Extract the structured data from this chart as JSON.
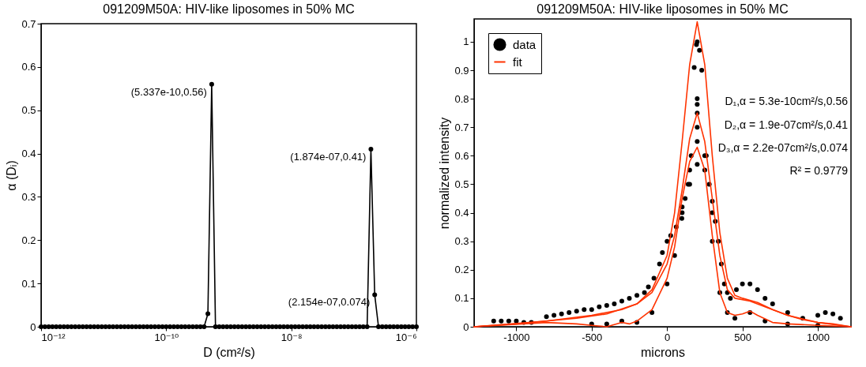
{
  "chart_data": [
    {
      "type": "line",
      "title": "091209M50A: HIV-like liposomes in 50% MC",
      "xlabel": "D (cm²/s)",
      "ylabel": "α (Dᵢ)",
      "log": "x",
      "marker": "circle",
      "line_style": "solid",
      "xlim": [
        1e-12,
        1e-06
      ],
      "xticks": [
        {
          "value": 1e-12,
          "label": "10⁻¹²"
        },
        {
          "value": 1e-10,
          "label": "10⁻¹⁰"
        },
        {
          "value": 1e-08,
          "label": "10⁻⁸"
        },
        {
          "value": 1e-06,
          "label": "10⁻⁶"
        }
      ],
      "ylim": [
        0,
        0.7
      ],
      "yticks": [
        0,
        0.1,
        0.2,
        0.3,
        0.4,
        0.5,
        0.6,
        0.7
      ],
      "x": [
        1e-12,
        1.15e-12,
        1.322e-12,
        1.52e-12,
        1.748e-12,
        2.009e-12,
        2.31e-12,
        2.656e-12,
        3.054e-12,
        3.511e-12,
        4.037e-12,
        4.642e-12,
        5.337e-12,
        6.136e-12,
        7.055e-12,
        8.111e-12,
        9.326e-12,
        1.072e-11,
        1.233e-11,
        1.417e-11,
        1.63e-11,
        1.874e-11,
        2.154e-11,
        2.477e-11,
        2.848e-11,
        3.275e-11,
        3.765e-11,
        4.329e-11,
        4.977e-11,
        5.722e-11,
        6.579e-11,
        7.565e-11,
        8.697e-11,
        1e-10,
        1.15e-10,
        1.322e-10,
        1.52e-10,
        1.748e-10,
        2.009e-10,
        2.31e-10,
        2.656e-10,
        3.054e-10,
        3.511e-10,
        4.037e-10,
        4.642e-10,
        5.337e-10,
        6.136e-10,
        7.055e-10,
        8.111e-10,
        9.326e-10,
        1.072e-09,
        1.233e-09,
        1.417e-09,
        1.63e-09,
        1.874e-09,
        2.154e-09,
        2.477e-09,
        2.848e-09,
        3.275e-09,
        3.765e-09,
        4.329e-09,
        4.977e-09,
        5.722e-09,
        6.579e-09,
        7.565e-09,
        8.697e-09,
        1e-08,
        1.15e-08,
        1.322e-08,
        1.52e-08,
        1.748e-08,
        2.009e-08,
        2.31e-08,
        2.656e-08,
        3.054e-08,
        3.511e-08,
        4.037e-08,
        4.642e-08,
        5.337e-08,
        6.136e-08,
        7.055e-08,
        8.111e-08,
        9.326e-08,
        1.072e-07,
        1.233e-07,
        1.417e-07,
        1.63e-07,
        1.874e-07,
        2.154e-07,
        2.477e-07,
        2.848e-07,
        3.275e-07,
        3.765e-07,
        4.329e-07,
        4.977e-07,
        5.722e-07,
        6.579e-07,
        7.565e-07,
        8.697e-07,
        1e-06
      ],
      "values": [
        0,
        0,
        0,
        0,
        0,
        0,
        0,
        0,
        0,
        0,
        0,
        0,
        0,
        0,
        0,
        0,
        0,
        0,
        0,
        0,
        0,
        0,
        0,
        0,
        0,
        0,
        0,
        0,
        0,
        0,
        0,
        0,
        0,
        0,
        0,
        0,
        0,
        0,
        0,
        0,
        0,
        0,
        0,
        0,
        0.03,
        0.56,
        0,
        0,
        0,
        0,
        0,
        0,
        0,
        0,
        0,
        0,
        0,
        0,
        0,
        0,
        0,
        0,
        0,
        0,
        0,
        0,
        0,
        0,
        0,
        0,
        0,
        0,
        0,
        0,
        0,
        0,
        0,
        0,
        0,
        0,
        0,
        0,
        0,
        0,
        0,
        0,
        0,
        0.41,
        0.074,
        0,
        0,
        0,
        0,
        0,
        0,
        0,
        0,
        0,
        0,
        0
      ],
      "color": "#000000",
      "annotations": [
        {
          "text": "(5.337e-10,0.56)",
          "x": 5.337e-10,
          "y": 0.56
        },
        {
          "text": "(1.874e-07,0.41)",
          "x": 1.874e-07,
          "y": 0.41
        },
        {
          "text": "(2.154e-07,0.074)",
          "x": 2.154e-07,
          "y": 0.074
        }
      ]
    },
    {
      "type": "line",
      "title": "091209M50A: HIV-like liposomes in 50% MC",
      "xlabel": "microns",
      "ylabel": "normalized intensity",
      "legend": "top left",
      "xlim": [
        -1280,
        1220
      ],
      "xticks": [
        -1000,
        -500,
        0,
        500,
        1000
      ],
      "ylim": [
        0,
        1.08
      ],
      "yticks": [
        0,
        0.1,
        0.2,
        0.3,
        0.4,
        0.5,
        0.6,
        0.7,
        0.8,
        0.9,
        1
      ],
      "series": [
        {
          "name": "data",
          "type": "scatter",
          "marker": "circle",
          "color": "#000000",
          "x": [
            -1150,
            -1100,
            -1050,
            -1000,
            -950,
            -900,
            -800,
            -750,
            -700,
            -650,
            -600,
            -550,
            -500,
            -450,
            -400,
            -350,
            -300,
            -250,
            -200,
            -150,
            -124,
            -87,
            -50,
            -31,
            0,
            24,
            61,
            98,
            120,
            140,
            160,
            180,
            195,
            200,
            215,
            230,
            200,
            200,
            200,
            200,
            200,
            200,
            260,
            280,
            300,
            320,
            340,
            360,
            380,
            400,
            420,
            460,
            500,
            550,
            600,
            650,
            700,
            800,
            900,
            1000,
            1050,
            1100,
            1150,
            -500,
            -400,
            -300,
            -200,
            -100,
            0,
            50,
            100,
            150,
            250,
            300,
            350,
            400,
            450,
            550,
            650,
            800,
            1000,
            100,
            150,
            250,
            300
          ],
          "values": [
            0.02,
            0.02,
            0.02,
            0.02,
            0.015,
            0.015,
            0.035,
            0.04,
            0.045,
            0.05,
            0.055,
            0.06,
            0.06,
            0.07,
            0.075,
            0.08,
            0.09,
            0.1,
            0.11,
            0.12,
            0.14,
            0.17,
            0.22,
            0.26,
            0.3,
            0.32,
            0.35,
            0.38,
            0.45,
            0.5,
            0.6,
            0.91,
            0.99,
            1.0,
            0.97,
            0.9,
            0.8,
            0.78,
            0.75,
            0.7,
            0.65,
            0.57,
            0.6,
            0.5,
            0.44,
            0.37,
            0.3,
            0.22,
            0.15,
            0.12,
            0.1,
            0.13,
            0.15,
            0.15,
            0.13,
            0.1,
            0.08,
            0.05,
            0.03,
            0.04,
            0.05,
            0.045,
            0.03,
            0.01,
            0.01,
            0.02,
            0.015,
            0.05,
            0.15,
            0.25,
            0.4,
            0.55,
            0.55,
            0.3,
            0.12,
            0.05,
            0.03,
            0.05,
            0.02,
            0.01,
            0.005,
            0.42,
            0.5,
            0.6,
            0.4
          ]
        },
        {
          "name": "fit",
          "type": "line",
          "marker": "none",
          "color": "#ff3300",
          "x": [
            -1280,
            -1000,
            -800,
            -600,
            -400,
            -200,
            -100,
            0,
            50,
            100,
            150,
            200,
            250,
            300,
            350,
            400,
            450,
            500,
            600,
            700,
            800,
            900,
            1000,
            1100,
            1220
          ],
          "values": [
            0,
            0.01,
            0.02,
            0.03,
            0.045,
            0.08,
            0.13,
            0.25,
            0.4,
            0.65,
            0.92,
            1.07,
            0.92,
            0.6,
            0.33,
            0.17,
            0.11,
            0.1,
            0.085,
            0.06,
            0.04,
            0.025,
            0.015,
            0.01,
            0
          ]
        },
        {
          "type": "line",
          "marker": "none",
          "color": "#ff3300",
          "x": [
            -1280,
            -800,
            -500,
            -300,
            -200,
            -100,
            0,
            50,
            100,
            150,
            200,
            250,
            300,
            350,
            400,
            450,
            550,
            650,
            800,
            1000,
            1220
          ],
          "values": [
            0,
            0.02,
            0.04,
            0.06,
            0.08,
            0.12,
            0.22,
            0.32,
            0.48,
            0.66,
            0.75,
            0.65,
            0.45,
            0.25,
            0.13,
            0.1,
            0.09,
            0.07,
            0.04,
            0.015,
            0
          ]
        },
        {
          "type": "line",
          "marker": "none",
          "color": "#ff3300",
          "x": [
            -1280,
            -800,
            -600,
            -500,
            -400,
            -300,
            -250,
            -200,
            -100,
            0,
            50,
            100,
            150,
            200,
            250,
            300,
            350,
            400,
            450,
            500,
            550,
            600,
            700,
            800,
            1000,
            1220
          ],
          "values": [
            0,
            0.015,
            0.01,
            0.005,
            0,
            0.015,
            0.01,
            0.02,
            0.06,
            0.17,
            0.28,
            0.45,
            0.58,
            0.63,
            0.55,
            0.32,
            0.12,
            0.05,
            0.04,
            0.045,
            0.055,
            0.04,
            0.015,
            0.01,
            0.005,
            0
          ]
        }
      ],
      "annotations": [
        "D₁,α = 5.3e-10cm²/s,0.56",
        "D₂,α = 1.9e-07cm²/s,0.41",
        "D₃,α = 2.2e-07cm²/s,0.074",
        "R² = 0.9779"
      ]
    }
  ]
}
